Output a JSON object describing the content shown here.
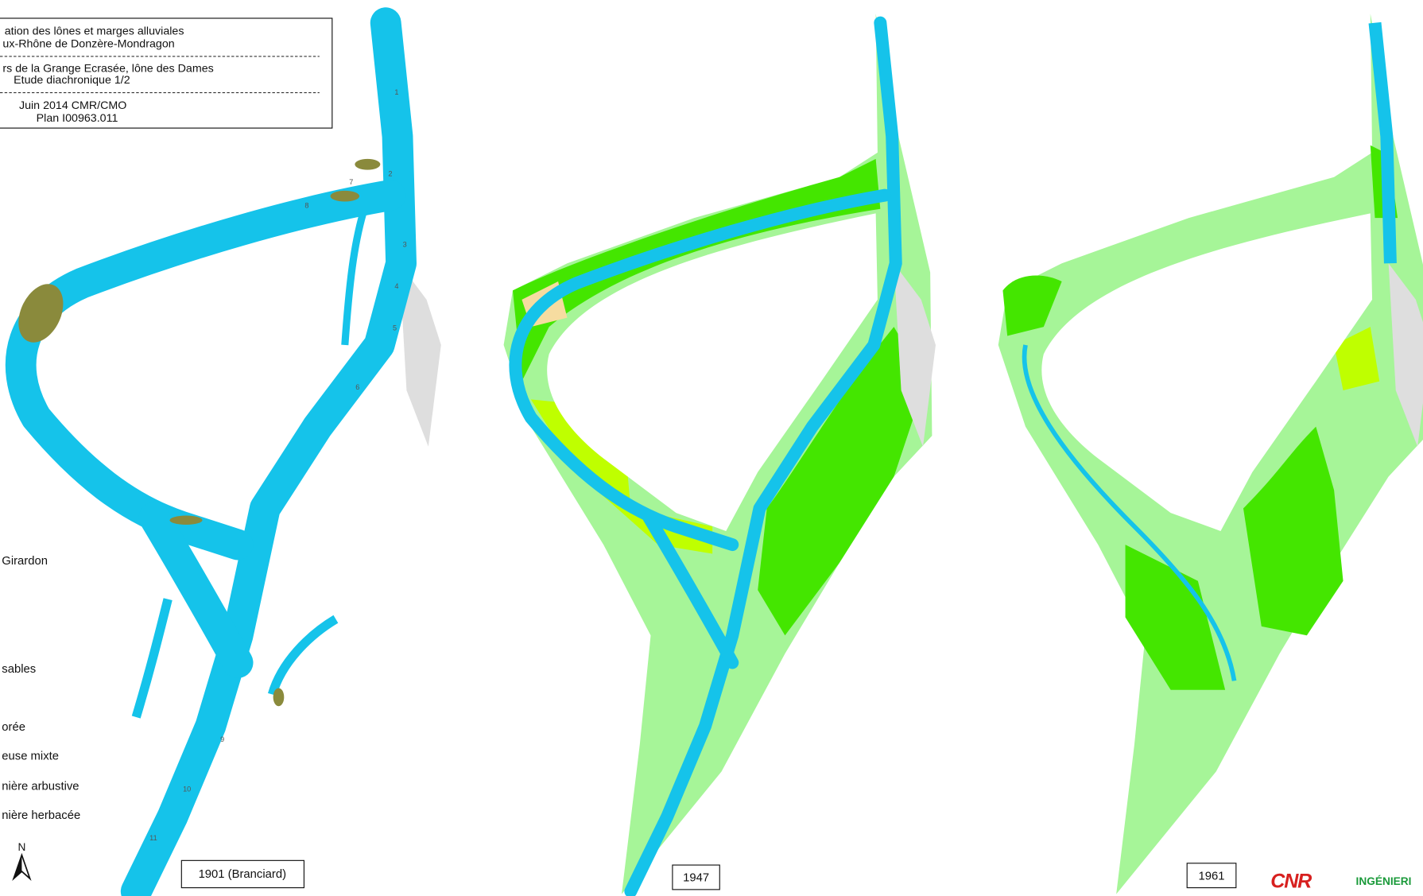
{
  "header": {
    "lines": [
      "ation des lônes et marges alluviales",
      "ux-Rhône de Donzère-Mondragon",
      "rs de la Grange Ecrasée, lône des Dames",
      "Etude diachronique 1/2",
      "Juin 2014 CMR/CMO",
      "Plan I00963.011"
    ]
  },
  "legend": {
    "items": [
      "Girardon",
      "sables",
      "orée",
      "euse mixte",
      "nière arbustive",
      "nière herbacée"
    ]
  },
  "north": "N",
  "panels": [
    {
      "label": "1901 (Branciard)",
      "sections": [
        "1",
        "2",
        "3",
        "4",
        "5",
        "6",
        "7",
        "8",
        "9",
        "10",
        "11"
      ]
    },
    {
      "label": "1947"
    },
    {
      "label": "1961"
    }
  ],
  "logo": {
    "brand": "CNR",
    "text": "INGÉNIERI"
  }
}
